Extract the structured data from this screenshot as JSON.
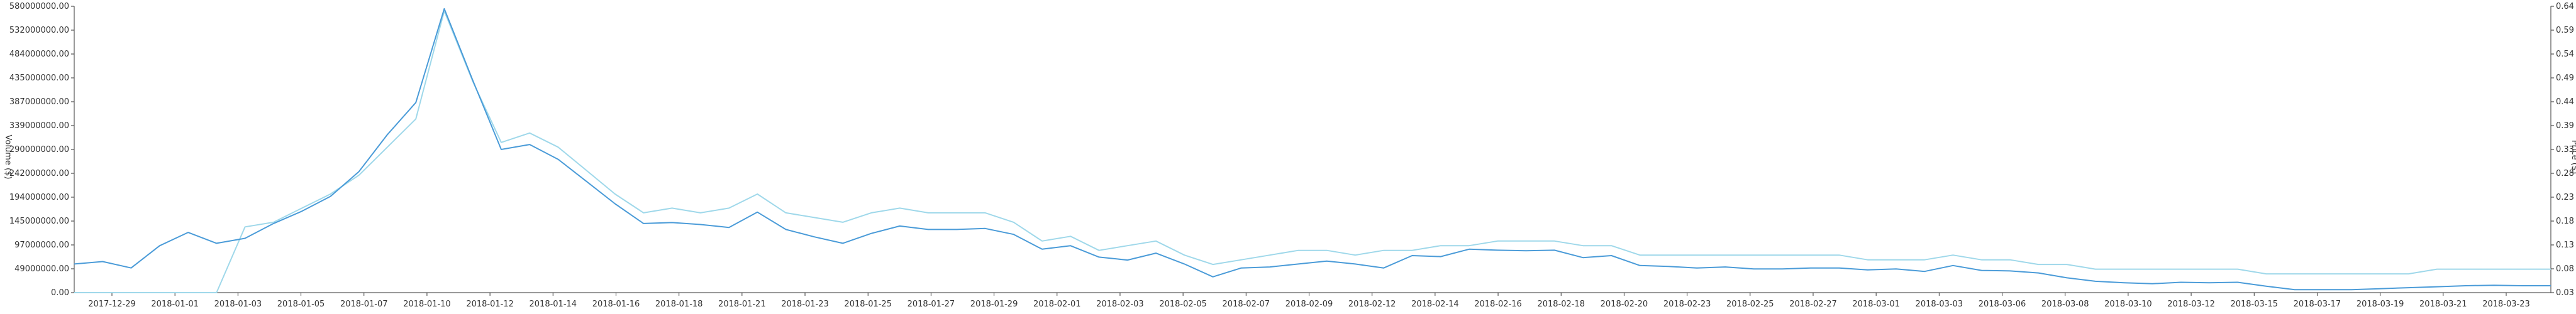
{
  "chart_data": {
    "type": "line",
    "title": "",
    "xlabel": "",
    "ylabel_left": "Volume ($)",
    "ylabel_right": "Price ($)",
    "colors": {
      "volume": "#4a9bd8",
      "price": "#9fd8ea",
      "axis": "#333333"
    },
    "left_ticks": [
      "0.00",
      "49000000.00",
      "97000000.00",
      "145000000.00",
      "194000000.00",
      "242000000.00",
      "290000000.00",
      "339000000.00",
      "387000000.00",
      "435000000.00",
      "484000000.00",
      "532000000.00",
      "580000000.00"
    ],
    "right_ticks": [
      "0.03",
      "0.08",
      "0.13",
      "0.18",
      "0.23",
      "0.28",
      "0.33",
      "0.39",
      "0.44",
      "0.49",
      "0.54",
      "0.59",
      "0.64"
    ],
    "x_labels": [
      "2017-12-29",
      "2018-01-01",
      "2018-01-03",
      "2018-01-05",
      "2018-01-07",
      "2018-01-10",
      "2018-01-12",
      "2018-01-14",
      "2018-01-16",
      "2018-01-18",
      "2018-01-21",
      "2018-01-23",
      "2018-01-25",
      "2018-01-27",
      "2018-01-29",
      "2018-02-01",
      "2018-02-03",
      "2018-02-05",
      "2018-02-07",
      "2018-02-09",
      "2018-02-12",
      "2018-02-14",
      "2018-02-16",
      "2018-02-18",
      "2018-02-20",
      "2018-02-23",
      "2018-02-25",
      "2018-02-27",
      "2018-03-01",
      "2018-03-03",
      "2018-03-06",
      "2018-03-08",
      "2018-03-10",
      "2018-03-12",
      "2018-03-15",
      "2018-03-17",
      "2018-03-19",
      "2018-03-21",
      "2018-03-23"
    ],
    "ylim_left": [
      0,
      580000000
    ],
    "ylim_right": [
      0.03,
      0.64
    ],
    "series": [
      {
        "name": "Volume ($)",
        "axis": "left",
        "values": [
          58000000,
          63000000,
          50000000,
          95000000,
          122000000,
          100000000,
          110000000,
          140000000,
          165000000,
          195000000,
          245000000,
          320000000,
          385000000,
          575000000,
          430000000,
          290000000,
          300000000,
          270000000,
          225000000,
          180000000,
          140000000,
          142000000,
          138000000,
          132000000,
          163000000,
          128000000,
          113000000,
          100000000,
          120000000,
          135000000,
          128000000,
          128000000,
          130000000,
          118000000,
          88000000,
          95000000,
          72000000,
          66000000,
          80000000,
          58000000,
          32000000,
          50000000,
          52000000,
          58000000,
          64000000,
          58000000,
          50000000,
          75000000,
          73000000,
          88000000,
          86000000,
          85000000,
          86000000,
          71000000,
          75000000,
          55000000,
          53000000,
          50000000,
          52000000,
          48000000,
          48000000,
          50000000,
          50000000,
          46000000,
          48000000,
          43000000,
          55000000,
          45000000,
          44000000,
          40000000,
          30000000,
          23000000,
          20000000,
          18000000,
          21000000,
          20000000,
          21000000,
          13000000,
          6000000,
          6000000,
          6000000,
          8000000,
          10000000,
          12000000,
          14000000,
          15000000,
          14000000,
          14000000
        ]
      },
      {
        "name": "Price ($)",
        "axis": "right",
        "values": [
          0.03,
          0.03,
          0.03,
          0.03,
          0.03,
          0.03,
          0.17,
          0.18,
          0.21,
          0.24,
          0.28,
          0.34,
          0.4,
          0.63,
          0.48,
          0.35,
          0.37,
          0.34,
          0.29,
          0.24,
          0.2,
          0.21,
          0.2,
          0.21,
          0.24,
          0.2,
          0.19,
          0.18,
          0.2,
          0.21,
          0.2,
          0.2,
          0.2,
          0.18,
          0.14,
          0.15,
          0.12,
          0.13,
          0.14,
          0.11,
          0.09,
          0.1,
          0.11,
          0.12,
          0.12,
          0.11,
          0.12,
          0.12,
          0.13,
          0.13,
          0.14,
          0.14,
          0.14,
          0.13,
          0.13,
          0.11,
          0.11,
          0.11,
          0.11,
          0.11,
          0.11,
          0.11,
          0.11,
          0.1,
          0.1,
          0.1,
          0.11,
          0.1,
          0.1,
          0.09,
          0.09,
          0.08,
          0.08,
          0.08,
          0.08,
          0.08,
          0.08,
          0.07,
          0.07,
          0.07,
          0.07,
          0.07,
          0.07,
          0.08,
          0.08,
          0.08,
          0.08,
          0.08
        ]
      }
    ]
  }
}
